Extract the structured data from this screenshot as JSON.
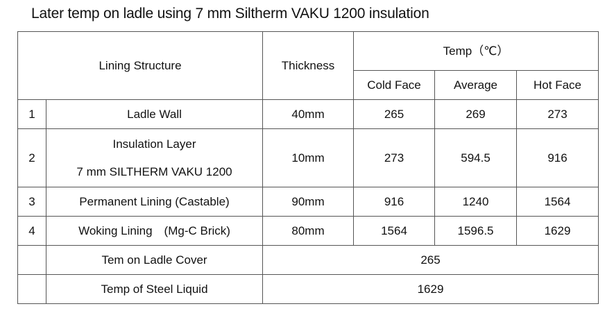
{
  "title": "Later temp on ladle using 7 mm Siltherm VAKU 1200 insulation",
  "table": {
    "headers": {
      "lining_structure": "Lining Structure",
      "thickness": "Thickness",
      "temp": "Temp（℃）",
      "cold_face": "Cold Face",
      "average": "Average",
      "hot_face": "Hot Face"
    },
    "rows": [
      {
        "num": "1",
        "structure": "Ladle Wall",
        "thickness": "40mm",
        "cold_face": "265",
        "average": "269",
        "hot_face": "273"
      },
      {
        "num": "2",
        "structure": "Insulation Layer",
        "structure_line2": "7 mm SILTHERM VAKU 1200",
        "thickness": "10mm",
        "cold_face": "273",
        "average": "594.5",
        "hot_face": "916"
      },
      {
        "num": "3",
        "structure": "Permanent Lining (Castable)",
        "thickness": "90mm",
        "cold_face": "916",
        "average": "1240",
        "hot_face": "1564"
      },
      {
        "num": "4",
        "structure": "Woking Lining　(Mg-C Brick)",
        "thickness": "80mm",
        "cold_face": "1564",
        "average": "1596.5",
        "hot_face": "1629"
      }
    ],
    "summary": [
      {
        "label": "Tem on Ladle Cover",
        "value": "265"
      },
      {
        "label": "Temp of Steel Liquid",
        "value": "1629"
      }
    ]
  }
}
